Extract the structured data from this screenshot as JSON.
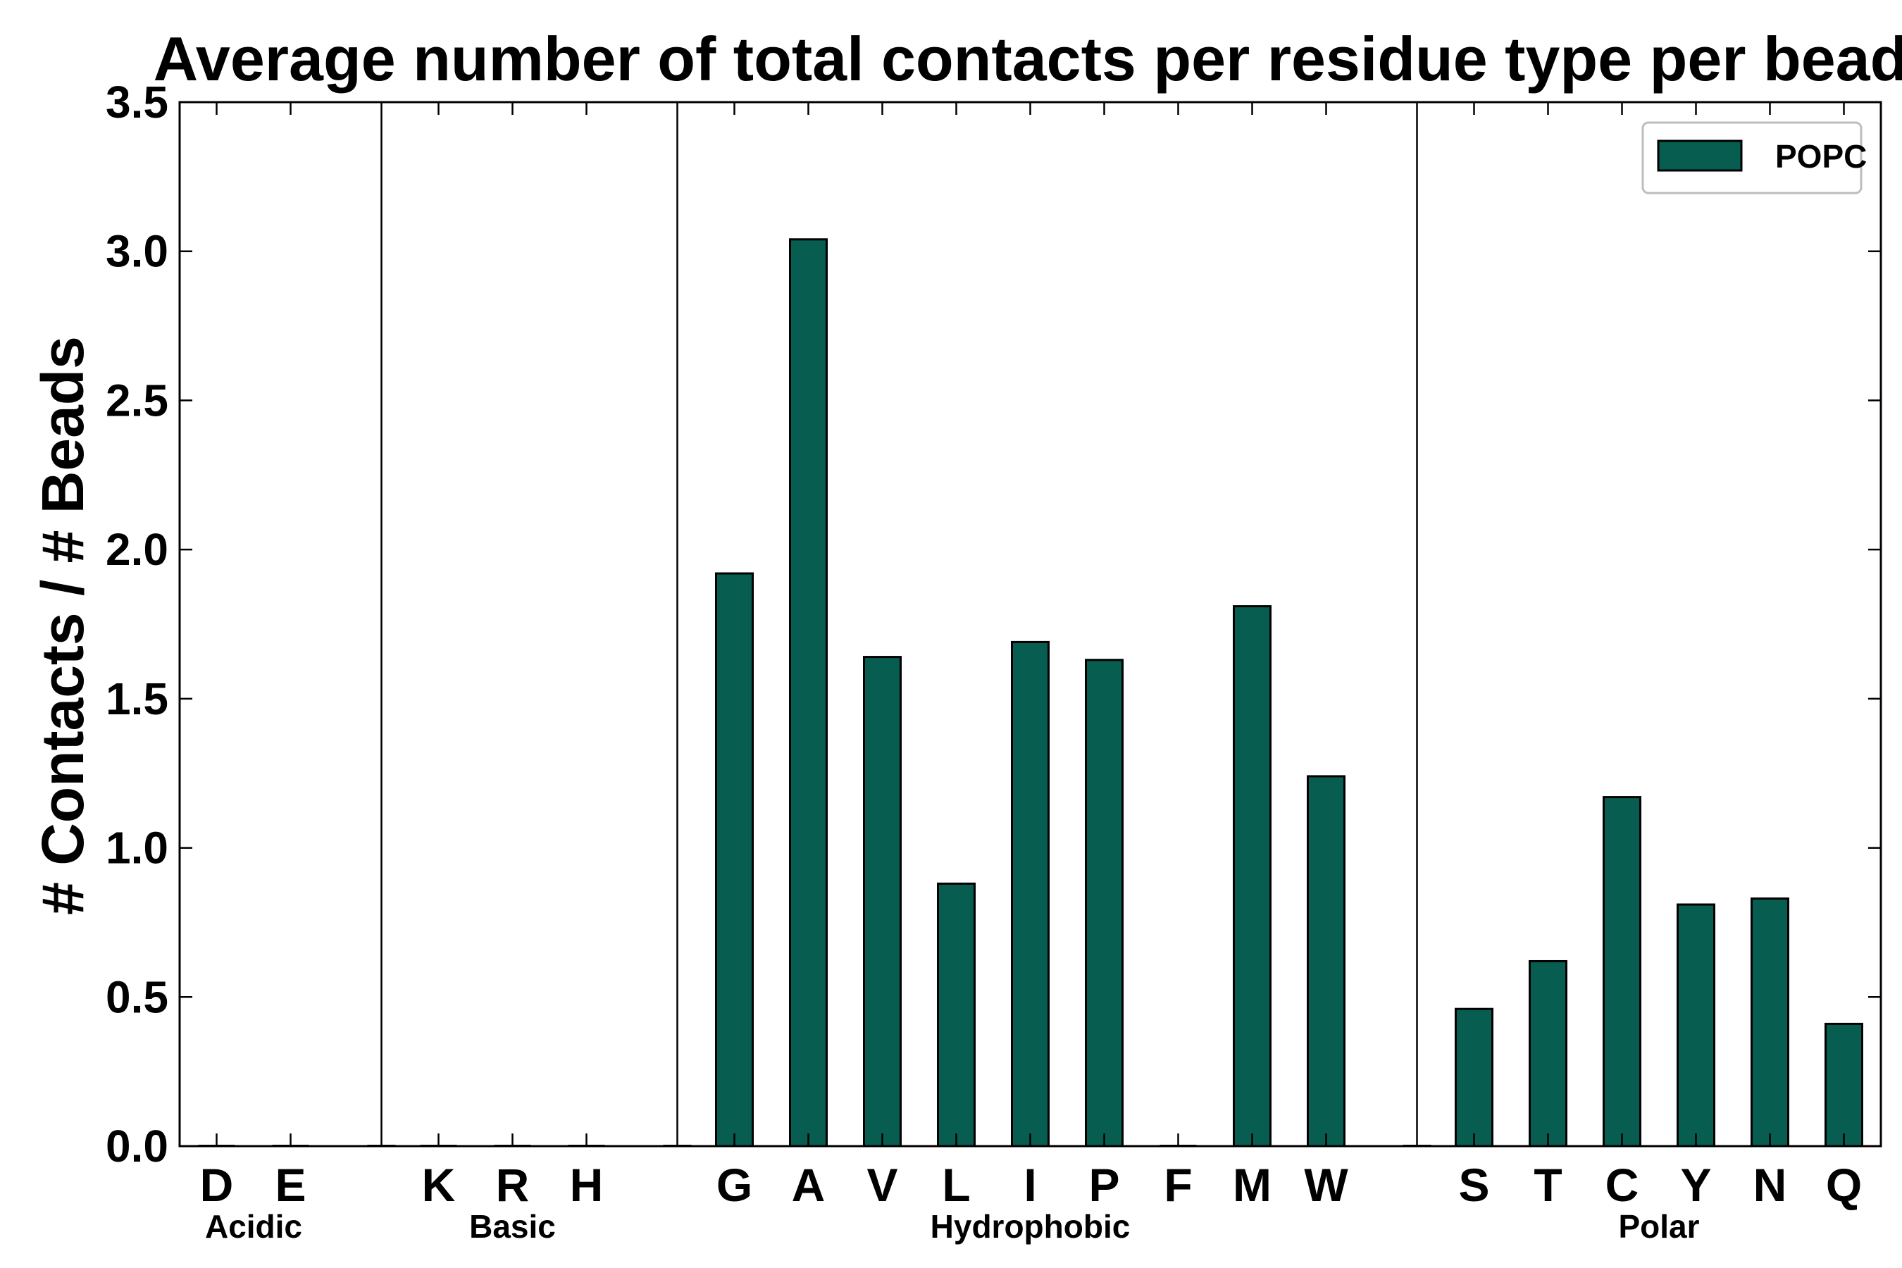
{
  "chart_data": {
    "type": "bar",
    "title": "Average number of total contacts per residue type per bead",
    "xlabel": "",
    "ylabel": "# Contacts / # Beads",
    "ylim": [
      0,
      3.5
    ],
    "yticks": [
      "0.0",
      "0.5",
      "1.0",
      "1.5",
      "2.0",
      "2.5",
      "3.0",
      "3.5"
    ],
    "categories": [
      "D",
      "E",
      "K",
      "R",
      "H",
      "G",
      "A",
      "V",
      "L",
      "I",
      "P",
      "F",
      "M",
      "W",
      "S",
      "T",
      "C",
      "Y",
      "N",
      "Q"
    ],
    "series": [
      {
        "name": "POPC",
        "values": [
          0,
          0,
          0,
          0,
          0,
          1.92,
          3.04,
          1.64,
          0.88,
          1.69,
          1.63,
          0,
          1.81,
          1.24,
          0.46,
          0.62,
          1.17,
          0.81,
          0.83,
          0.41
        ]
      }
    ],
    "groups": [
      {
        "label": "Acidic",
        "members": [
          "D",
          "E"
        ]
      },
      {
        "label": "Basic",
        "members": [
          "K",
          "R",
          "H"
        ]
      },
      {
        "label": "Hydrophobic",
        "members": [
          "G",
          "A",
          "V",
          "L",
          "I",
          "P",
          "F",
          "M",
          "W"
        ]
      },
      {
        "label": "Polar",
        "members": [
          "S",
          "T",
          "C",
          "Y",
          "N",
          "Q"
        ]
      }
    ],
    "bar_color": "#075d50",
    "legend_position": "top-right",
    "grid": false
  }
}
